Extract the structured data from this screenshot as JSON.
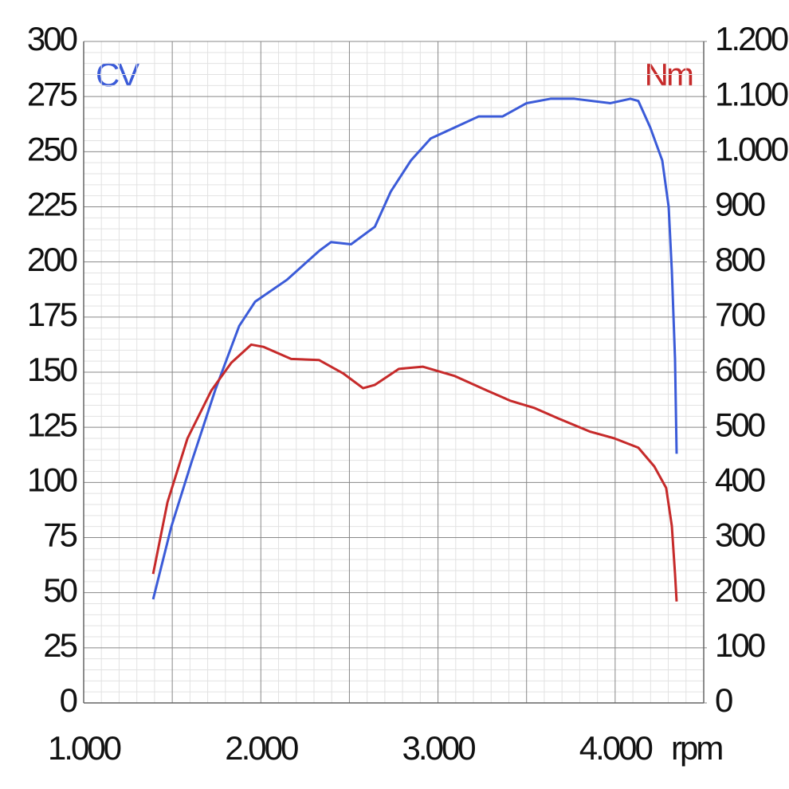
{
  "chart_data": {
    "type": "line",
    "xlabel": "rpm",
    "ylabel": "CV",
    "y2label": "Nm",
    "xlim": [
      1000,
      4500
    ],
    "xticks": [
      {
        "value": 1000,
        "label": "1.000"
      },
      {
        "value": 1500,
        "label": null
      },
      {
        "value": 2000,
        "label": "2.000"
      },
      {
        "value": 2500,
        "label": null
      },
      {
        "value": 3000,
        "label": "3.000"
      },
      {
        "value": 3500,
        "label": null
      },
      {
        "value": 4000,
        "label": "4.000"
      },
      {
        "value": 4500,
        "label": null
      }
    ],
    "ylim": [
      0,
      300
    ],
    "yticks": [
      0,
      25,
      50,
      75,
      100,
      125,
      150,
      175,
      200,
      225,
      250,
      275,
      300
    ],
    "y2lim": [
      0,
      1200
    ],
    "y2ticks": [
      0,
      100,
      200,
      300,
      400,
      500,
      600,
      700,
      800,
      900,
      {
        "value": 1000,
        "label": "1.000"
      },
      {
        "value": 1100,
        "label": "1.100"
      },
      {
        "value": 1200,
        "label": "1.200"
      }
    ],
    "grid": true,
    "minor_divisions": 5,
    "series": [
      {
        "name": "CV",
        "color": "#3b5bd8",
        "x": [
          1392,
          1495,
          1608,
          1743,
          1878,
          1968,
          2149,
          2329,
          2396,
          2509,
          2644,
          2734,
          2847,
          2959,
          3095,
          3230,
          3365,
          3500,
          3635,
          3770,
          3973,
          4086,
          4131,
          4198,
          4266,
          4302,
          4320,
          4338,
          4347
        ],
        "values": [
          47,
          80,
          109,
          142,
          171,
          182,
          192,
          205,
          209,
          208,
          216,
          232,
          246,
          256,
          261,
          266,
          266,
          272,
          274,
          274,
          272,
          274,
          273,
          261,
          246,
          225,
          196,
          156,
          113
        ]
      },
      {
        "name": "Nm",
        "color": "#c62a2a",
        "axis": "y2",
        "x": [
          1392,
          1473,
          1586,
          1721,
          1833,
          1946,
          2014,
          2171,
          2329,
          2464,
          2577,
          2644,
          2779,
          2914,
          3095,
          3275,
          3410,
          3545,
          3680,
          3860,
          3995,
          4131,
          4221,
          4288,
          4320,
          4338,
          4347
        ],
        "values": [
          234,
          364,
          480,
          567,
          617,
          650,
          646,
          624,
          622,
          598,
          571,
          577,
          606,
          610,
          593,
          567,
          548,
          535,
          516,
          492,
          480,
          463,
          429,
          390,
          321,
          234,
          184
        ]
      }
    ]
  }
}
